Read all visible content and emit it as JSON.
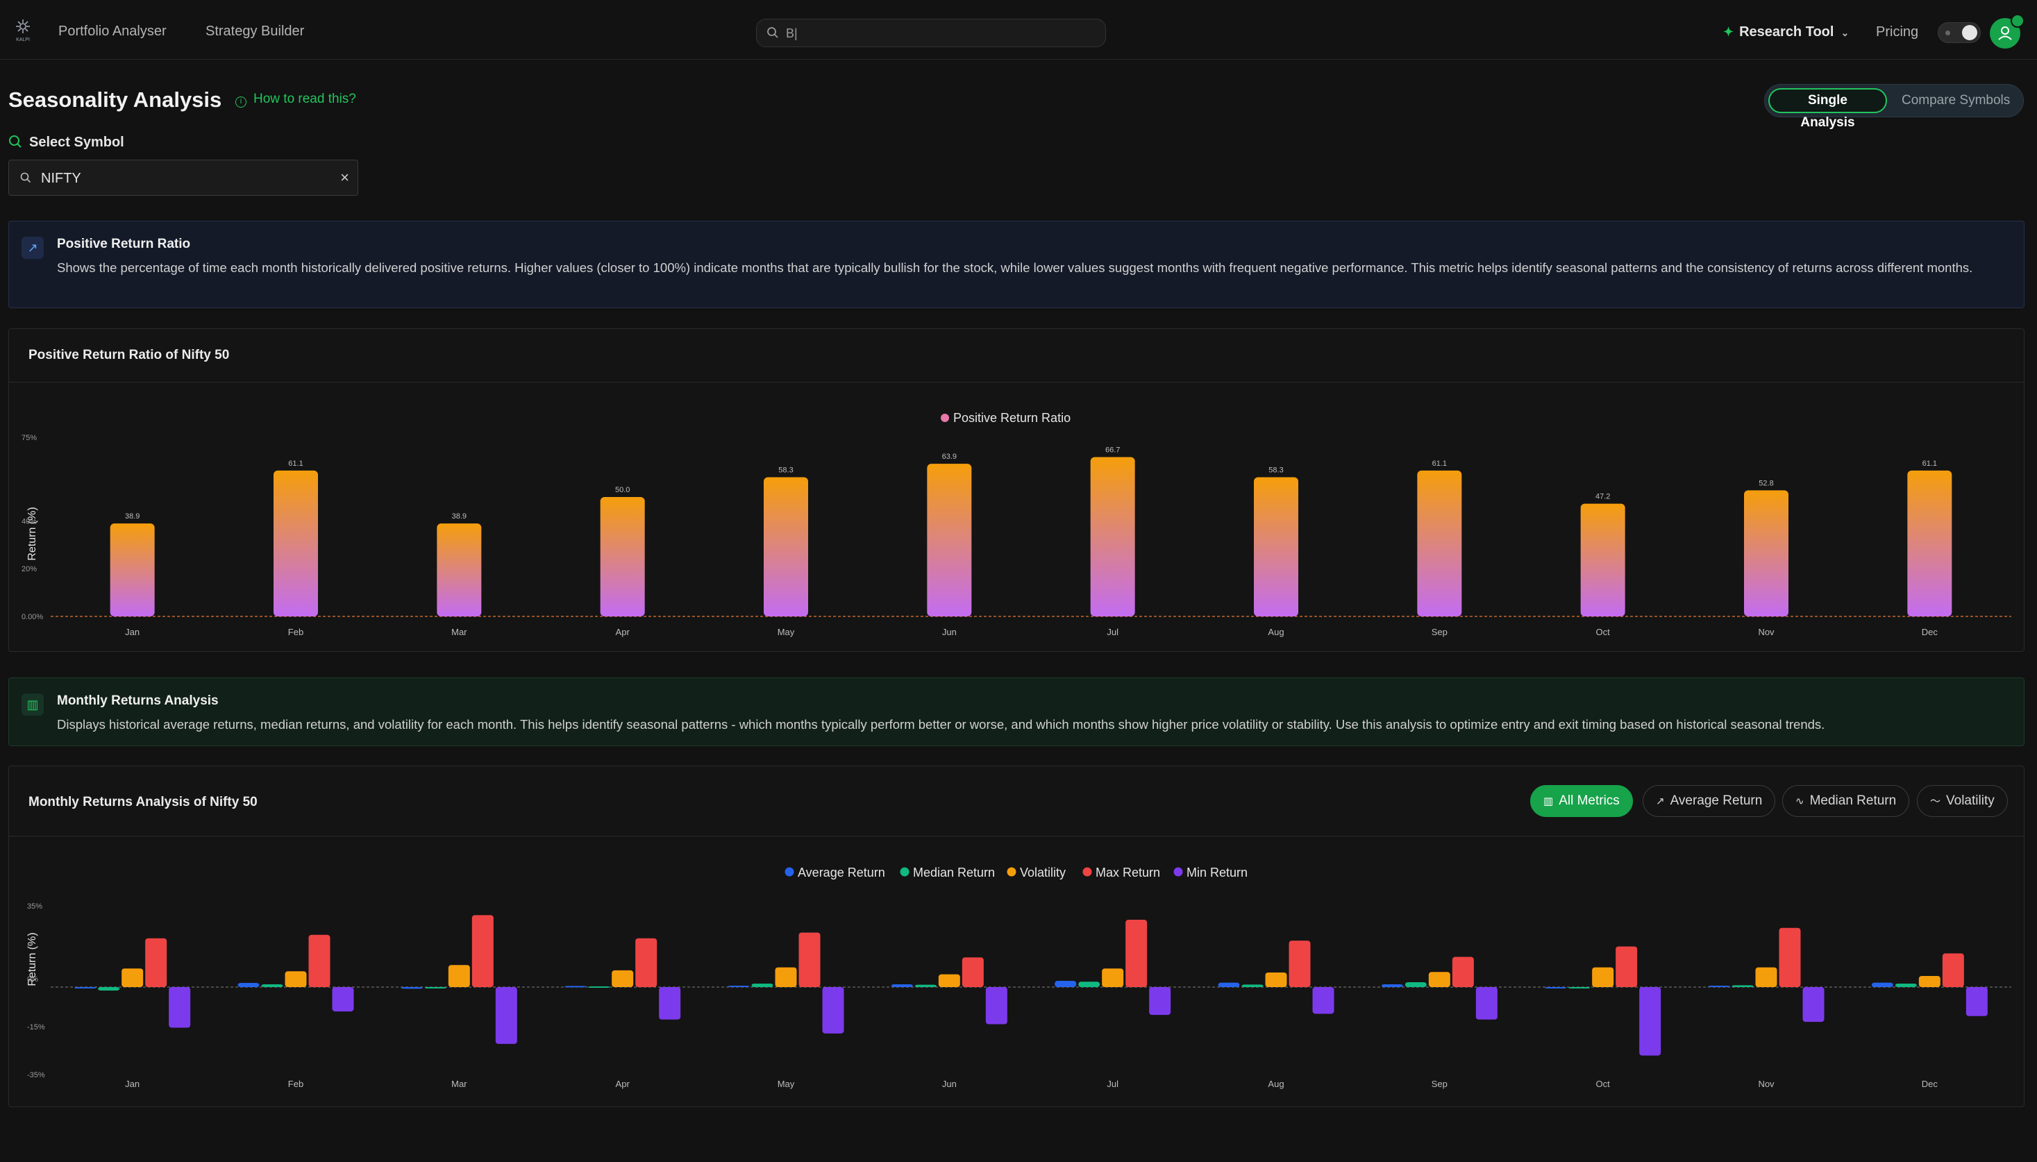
{
  "nav": {
    "logo_text": "KALPI",
    "links": [
      "Portfolio Analyser",
      "Strategy Builder"
    ],
    "search_value": "B|",
    "research_tool": "Research Tool",
    "pricing": "Pricing"
  },
  "page": {
    "title": "Seasonality Analysis",
    "how_to": "How to read this?",
    "modes": [
      "Single Analysis",
      "Compare Symbols"
    ],
    "select_label": "Select Symbol",
    "symbol_value": "NIFTY"
  },
  "info_positive": {
    "title": "Positive Return Ratio",
    "description": "Shows the percentage of time each month historically delivered positive returns. Higher values (closer to 100%) indicate months that are typically bullish for the stock, while lower values suggest months with frequent negative performance. This metric helps identify seasonal patterns and the consistency of returns across different months."
  },
  "info_monthly": {
    "title": "Monthly Returns Analysis",
    "description": "Displays historical average returns, median returns, and volatility for each month. This helps identify seasonal patterns - which months typically perform better or worse, and which months show higher price volatility or stability. Use this analysis to optimize entry and exit timing based on historical seasonal trends."
  },
  "card_positive": {
    "title": "Positive Return Ratio of Nifty 50"
  },
  "card_monthly": {
    "title": "Monthly Returns Analysis of Nifty 50",
    "tabs": [
      "All Metrics",
      "Average Return",
      "Median Return",
      "Volatility"
    ]
  },
  "colors": {
    "accent": "#16a34a",
    "bar_top": "#f59e0b",
    "bar_bottom": "#c36cf2",
    "average": "#2563eb",
    "median": "#10b981",
    "volatility": "#f59e0b",
    "max": "#ef4444",
    "min": "#7c3aed"
  },
  "chart_data": [
    {
      "type": "bar",
      "title": "Positive Return Ratio of Nifty 50",
      "ylabel": "Return (%)",
      "y_ticks": [
        "75%",
        "40%",
        "20%",
        "0.00%"
      ],
      "ylim": [
        0,
        75
      ],
      "legend": "top-center",
      "categories": [
        "Jan",
        "Feb",
        "Mar",
        "Apr",
        "May",
        "Jun",
        "Jul",
        "Aug",
        "Sep",
        "Oct",
        "Nov",
        "Dec"
      ],
      "series": [
        {
          "name": "Positive Return Ratio",
          "values": [
            38.9,
            61.1,
            38.9,
            50.0,
            58.3,
            63.9,
            66.7,
            58.3,
            61.1,
            47.2,
            52.8,
            61.1
          ]
        }
      ],
      "data_labels": [
        "38.9",
        "61.1",
        "38.9",
        "50.0",
        "58.3",
        "63.9",
        "66.7",
        "58.3",
        "61.1",
        "47.2",
        "52.8",
        "61.1"
      ]
    },
    {
      "type": "bar",
      "title": "Monthly Returns Analysis of Nifty 50",
      "ylabel": "Return (%)",
      "y_ticks": [
        "35%",
        "0%",
        "-15%",
        "-35%"
      ],
      "ylim": [
        -35,
        35
      ],
      "legend": "top-center",
      "categories": [
        "Jan",
        "Feb",
        "Mar",
        "Apr",
        "May",
        "Jun",
        "Jul",
        "Aug",
        "Sep",
        "Oct",
        "Nov",
        "Dec"
      ],
      "series": [
        {
          "name": "Average Return",
          "values": [
            -0.5,
            1.8,
            -0.7,
            0.5,
            0.6,
            1.2,
            2.7,
            1.9,
            1.2,
            -0.6,
            0.6,
            1.9
          ]
        },
        {
          "name": "Median Return",
          "values": [
            -1.5,
            1.2,
            -0.6,
            0.3,
            1.5,
            1.0,
            2.3,
            1.1,
            2.1,
            -0.5,
            0.8,
            1.5
          ]
        },
        {
          "name": "Volatility",
          "values": [
            8.0,
            6.8,
            9.5,
            7.2,
            8.5,
            5.5,
            8.0,
            6.3,
            6.5,
            8.5,
            8.5,
            4.8
          ]
        },
        {
          "name": "Max Return",
          "values": [
            21.0,
            22.5,
            31.0,
            21.0,
            23.5,
            12.8,
            29.0,
            20.0,
            13.0,
            17.5,
            25.5,
            14.5
          ]
        },
        {
          "name": "Min Return",
          "values": [
            -17.5,
            -10.5,
            -24.5,
            -14.0,
            -20.0,
            -16.0,
            -12.0,
            -11.5,
            -14.0,
            -29.5,
            -15.0,
            -12.5
          ]
        }
      ]
    }
  ]
}
